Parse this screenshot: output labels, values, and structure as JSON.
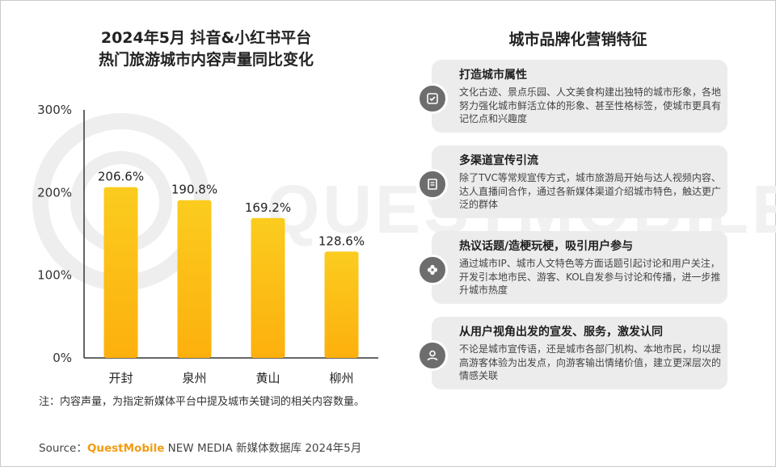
{
  "chart_data": {
    "type": "bar",
    "title_lines": [
      "2024年5月 抖音&小红书平台",
      "热门旅游城市内容声量同比变化"
    ],
    "categories": [
      "开封",
      "泉州",
      "黄山",
      "柳州"
    ],
    "values": [
      206.6,
      190.8,
      169.2,
      128.6
    ],
    "data_labels": [
      "206.6%",
      "190.8%",
      "169.2%",
      "128.6%"
    ],
    "yticks": [
      0,
      100,
      200,
      300
    ],
    "ytick_labels": [
      "0%",
      "100%",
      "200%",
      "300%"
    ],
    "ylim": [
      0,
      300
    ],
    "xlabel": "",
    "ylabel": "",
    "grid": false,
    "bar_color_top": "#fbcc1f",
    "bar_color_bottom": "#fdb00d"
  },
  "panel": {
    "title": "城市品牌化营销特征",
    "cards": [
      {
        "title": "打造城市属性",
        "icon": "checklist-icon",
        "desc": "文化古迹、景点乐园、人文美食构建出独特的城市形象，各地努力强化城市鲜活立体的形象、甚至性格标签，使城市更具有记忆点和兴趣度"
      },
      {
        "title": "多渠道宣传引流",
        "icon": "document-icon",
        "desc": "除了TVC等常规宣传方式，城市旅游局开始与达人视频内容、达人直播间合作，通过各新媒体渠道介绍城市特色，触达更广泛的群体"
      },
      {
        "title": "热议话题/造梗玩梗，吸引用户参与",
        "icon": "flower-icon",
        "desc": "通过城市IP、城市人文特色等方面话题引起讨论和用户关注，开发引本地市民、游客、KOL自发参与讨论和传播，进一步推升城市热度"
      },
      {
        "title": "从用户视角出发的宣发、服务，激发认同",
        "icon": "user-icon",
        "desc": "不论是城市宣传语，还是城市各部门机构、本地市民，均以提高游客体验为出发点，向游客输出情绪价值，建立更深层次的情感关联"
      }
    ]
  },
  "note": "注：内容声量，为指定新媒体平台中提及城市关键词的相关内容数量。",
  "source": {
    "prefix": "Source：",
    "brand": "QuestMobile",
    "suffix": " NEW MEDIA 新媒体数据库 2024年5月"
  },
  "watermark": "QUESTMOBILE",
  "colors": {
    "accent": "#f39b12",
    "card_bg": "#ececec",
    "icon_bg": "#6d6d6d"
  }
}
